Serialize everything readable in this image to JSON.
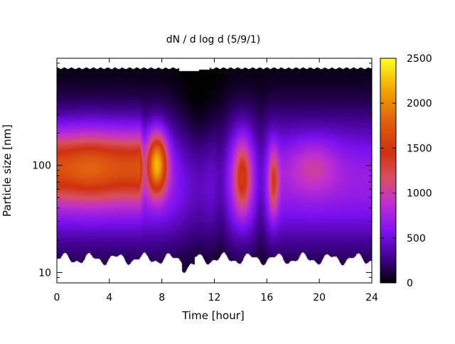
{
  "chart_data": {
    "type": "heatmap",
    "title": "dN / d log d (5/9/1)",
    "xlabel": "Time [hour]",
    "ylabel": "Particle size [nm]",
    "x_ticks": [
      "0",
      "4",
      "8",
      "12",
      "16",
      "20",
      "24"
    ],
    "y_ticks": [
      "10",
      "100"
    ],
    "xlim": [
      0,
      24
    ],
    "ylim": [
      8,
      1000
    ],
    "y_scale": "log",
    "colorbar": {
      "ticks": [
        "0",
        "500",
        "1000",
        "1500",
        "2000",
        "2500"
      ],
      "range": [
        0,
        2500
      ],
      "palette": [
        "#000000",
        "#3a0080",
        "#7a10f0",
        "#c030d0",
        "#d85060",
        "#e06010",
        "#ee8800",
        "#ffc000",
        "#ffff20"
      ]
    },
    "grid": false,
    "approx_features": [
      {
        "time_hours": [
          0,
          6
        ],
        "peak_size_nm": 100,
        "peak_dN_dlogd": 1700
      },
      {
        "time_hours": [
          7,
          8.5
        ],
        "peak_size_nm": 100,
        "peak_dN_dlogd": 2300
      },
      {
        "time_hours": [
          13.5,
          14.8
        ],
        "peak_size_nm": 90,
        "peak_dN_dlogd": 1400
      },
      {
        "time_hours": [
          16.2,
          16.8
        ],
        "peak_size_nm": 70,
        "peak_dN_dlogd": 1300
      },
      {
        "time_hours": [
          18,
          21
        ],
        "peak_size_nm": 100,
        "peak_dN_dlogd": 1050
      }
    ]
  }
}
